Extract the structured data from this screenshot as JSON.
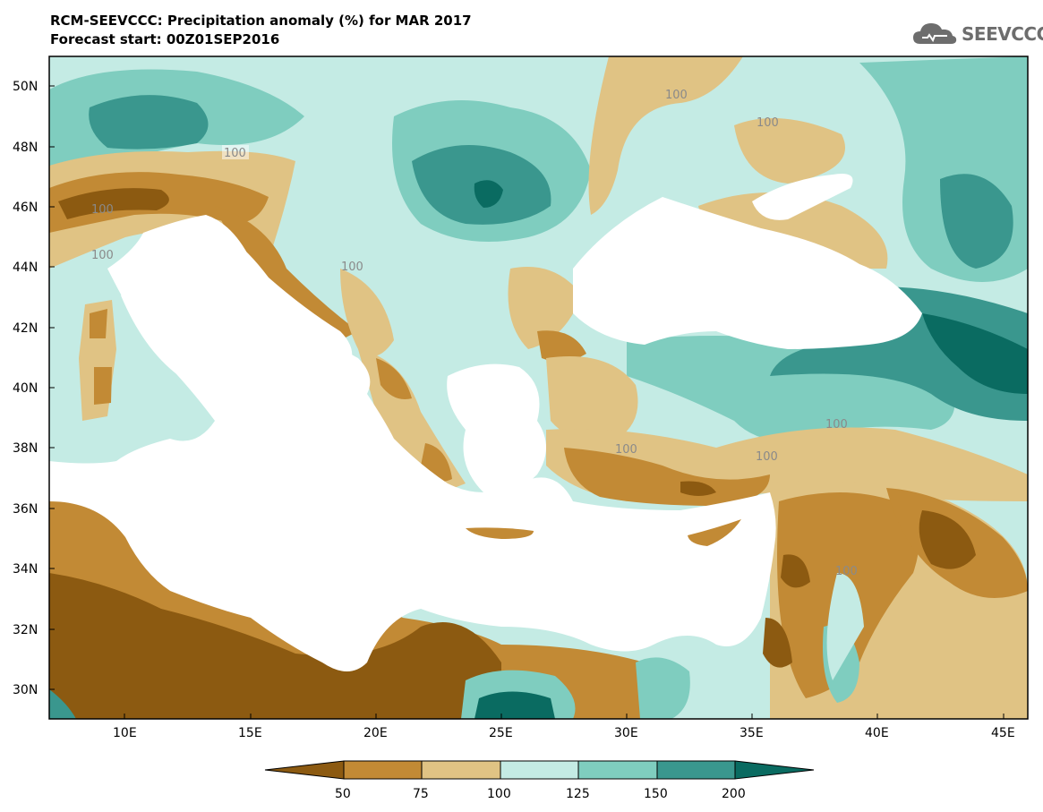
{
  "title_line1": "RCM-SEEVCCC: Precipitation anomaly (%) for MAR 2017",
  "title_line2": "Forecast start: 00Z01SEP2016",
  "logo_text": "SEEVCCC",
  "latitude_labels": [
    "50N",
    "48N",
    "46N",
    "44N",
    "42N",
    "40N",
    "38N",
    "36N",
    "34N",
    "32N",
    "30N"
  ],
  "longitude_labels": [
    "10E",
    "15E",
    "20E",
    "25E",
    "30E",
    "35E",
    "40E",
    "45E"
  ],
  "colorbar": {
    "labels": [
      "50",
      "75",
      "100",
      "125",
      "150",
      "200"
    ],
    "colors": [
      "#8c5a11",
      "#c28a35",
      "#e0c384",
      "#c4ebe4",
      "#7fcdbf",
      "#3a978e",
      "#0a6b61"
    ]
  },
  "contour_labels": [
    "100",
    "100",
    "100",
    "100",
    "100",
    "100",
    "100",
    "100",
    "100",
    "100"
  ],
  "palette": {
    "dark_brown": "#8c5a11",
    "brown": "#c28a35",
    "tan": "#e0c384",
    "light_teal": "#c4ebe4",
    "teal": "#7fcdbf",
    "dark_teal": "#3a978e",
    "deepest_teal": "#0a6b61",
    "sea": "#ffffff"
  }
}
